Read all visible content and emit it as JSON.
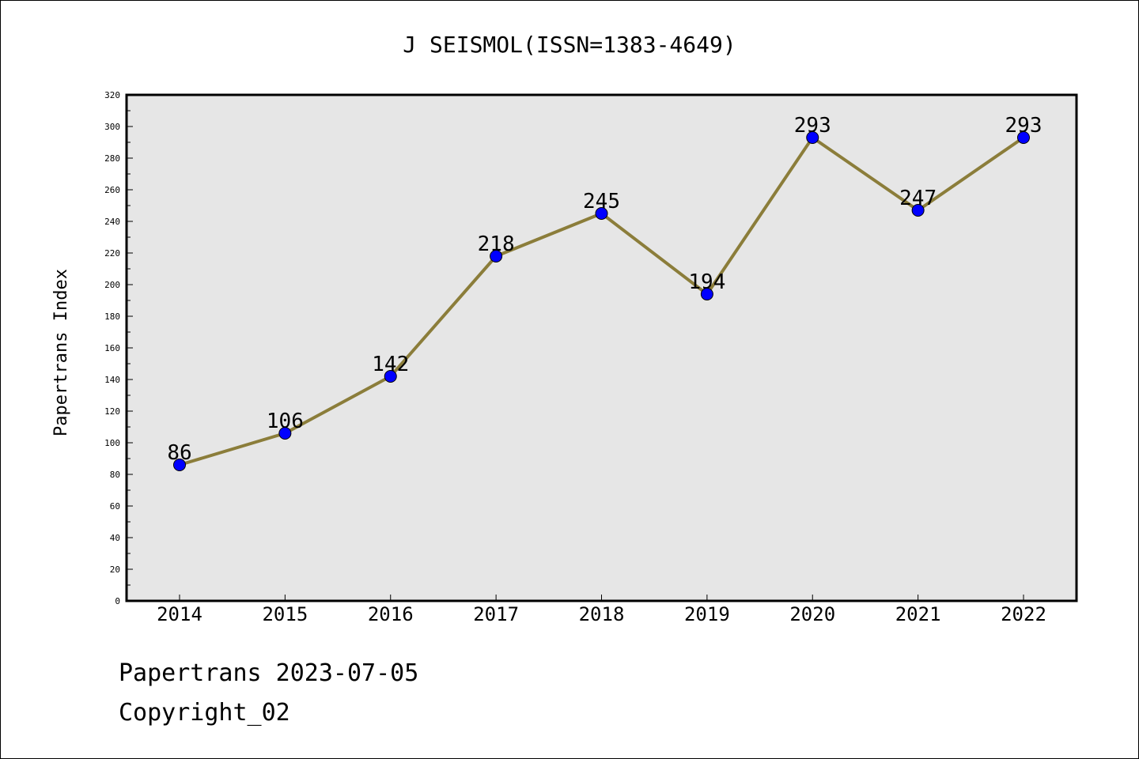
{
  "chart_data": {
    "type": "line",
    "title": "J SEISMOL(ISSN=1383-4649)",
    "xlabel": "",
    "ylabel": "Papertrans Index",
    "categories": [
      "2014",
      "2015",
      "2016",
      "2017",
      "2018",
      "2019",
      "2020",
      "2021",
      "2022"
    ],
    "series": [
      {
        "values": [
          86,
          106,
          142,
          218,
          245,
          194,
          293,
          247,
          293
        ]
      }
    ],
    "data_labels": [
      "86",
      "106",
      "142",
      "218",
      "245",
      "194",
      "293",
      "247",
      "293"
    ],
    "ylim": [
      0,
      320
    ],
    "yticks": [
      0,
      20,
      40,
      60,
      80,
      100,
      120,
      140,
      160,
      180,
      200,
      220,
      240,
      260,
      280,
      300,
      320
    ],
    "grid": false,
    "legend": "none",
    "colors": {
      "line": "#8b7d3a",
      "marker": "#0000ff",
      "plot_background": "#e6e6e6",
      "axes": "#000000"
    }
  },
  "footer": {
    "line1": "Papertrans 2023-07-05",
    "line2": "Copyright_02"
  }
}
